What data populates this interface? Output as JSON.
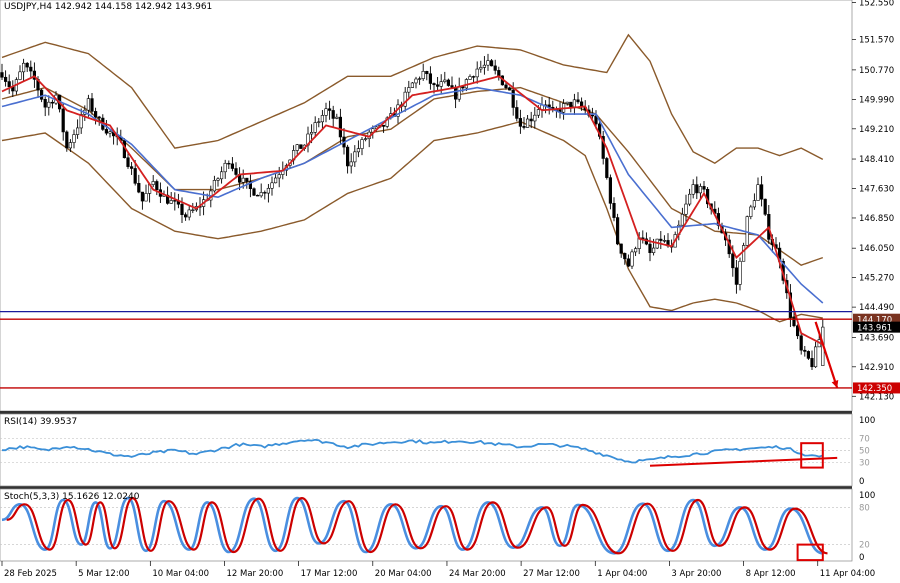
{
  "chart_data": {
    "type": "candlestick",
    "title": "USDJPY,H4  142.942 144.158 142.942 143.961",
    "symbol": "USDJPY",
    "timeframe": "H4",
    "last_bar": {
      "open": 142.942,
      "high": 144.158,
      "low": 142.942,
      "close": 143.961
    },
    "price_axis": {
      "ylim": [
        141.74,
        152.62
      ],
      "ticks": [
        "152.550",
        "151.570",
        "150.770",
        "149.990",
        "149.210",
        "148.410",
        "147.630",
        "146.850",
        "146.050",
        "145.270",
        "144.490",
        "143.690",
        "142.910",
        "142.130"
      ]
    },
    "time_axis": {
      "labels": [
        "28 Feb 2025",
        "5 Mar 12:00",
        "10 Mar 04:00",
        "12 Mar 20:00",
        "17 Mar 12:00",
        "20 Mar 04:00",
        "24 Mar 20:00",
        "27 Mar 12:00",
        "1 Apr 04:00",
        "3 Apr 20:00",
        "8 Apr 12:00",
        "11 Apr 04:00"
      ]
    },
    "horizontal_lines": [
      {
        "name": "resistance-blue",
        "price": 144.37,
        "color": "#1a1a9a"
      },
      {
        "name": "resistance-red",
        "price": 144.17,
        "label": "144.170",
        "color": "#c00000"
      },
      {
        "name": "support-red",
        "price": 142.35,
        "label": "142.350",
        "color": "#c00000"
      }
    ],
    "price_labels": [
      {
        "text": "144.170",
        "price": 144.17,
        "bg": "#7a3320",
        "fg": "#ffffff"
      },
      {
        "text": "143.961",
        "price": 143.96,
        "bg": "#000000",
        "fg": "#ffffff"
      },
      {
        "text": "142.350",
        "price": 142.35,
        "bg": "#cc0000",
        "fg": "#ffffff"
      }
    ],
    "price_path": [
      [
        0,
        150.7
      ],
      [
        3,
        150.2
      ],
      [
        6,
        150.9
      ],
      [
        9,
        150.5
      ],
      [
        12,
        149.8
      ],
      [
        15,
        150.1
      ],
      [
        18,
        148.7
      ],
      [
        21,
        149.3
      ],
      [
        24,
        149.9
      ],
      [
        27,
        149.4
      ],
      [
        30,
        149.1
      ],
      [
        33,
        148.8
      ],
      [
        36,
        148.1
      ],
      [
        39,
        147.3
      ],
      [
        42,
        147.8
      ],
      [
        45,
        147.4
      ],
      [
        48,
        147.2
      ],
      [
        51,
        146.9
      ],
      [
        54,
        147.1
      ],
      [
        57,
        147.4
      ],
      [
        60,
        147.9
      ],
      [
        63,
        148.4
      ],
      [
        66,
        147.9
      ],
      [
        69,
        147.6
      ],
      [
        72,
        147.5
      ],
      [
        75,
        147.8
      ],
      [
        78,
        148.2
      ],
      [
        81,
        148.6
      ],
      [
        84,
        148.8
      ],
      [
        87,
        149.3
      ],
      [
        90,
        149.7
      ],
      [
        93,
        149.4
      ],
      [
        96,
        148.3
      ],
      [
        99,
        148.7
      ],
      [
        102,
        149.1
      ],
      [
        105,
        149.2
      ],
      [
        108,
        149.5
      ],
      [
        111,
        149.9
      ],
      [
        114,
        150.4
      ],
      [
        117,
        150.7
      ],
      [
        120,
        150.3
      ],
      [
        123,
        150.4
      ],
      [
        126,
        150.1
      ],
      [
        129,
        150.5
      ],
      [
        132,
        150.8
      ],
      [
        135,
        150.9
      ],
      [
        138,
        150.6
      ],
      [
        141,
        150.2
      ],
      [
        144,
        149.3
      ],
      [
        147,
        149.5
      ],
      [
        150,
        149.9
      ],
      [
        153,
        149.6
      ],
      [
        156,
        149.8
      ],
      [
        159,
        149.9
      ],
      [
        162,
        149.7
      ],
      [
        165,
        149.4
      ],
      [
        168,
        147.9
      ],
      [
        171,
        146.2
      ],
      [
        174,
        145.6
      ],
      [
        177,
        146.4
      ],
      [
        180,
        145.9
      ],
      [
        183,
        146.3
      ],
      [
        186,
        146.0
      ],
      [
        189,
        146.9
      ],
      [
        192,
        147.7
      ],
      [
        195,
        147.5
      ],
      [
        198,
        146.9
      ],
      [
        201,
        146.3
      ],
      [
        204,
        145.1
      ],
      [
        207,
        146.8
      ],
      [
        210,
        147.7
      ],
      [
        213,
        146.4
      ],
      [
        216,
        145.8
      ],
      [
        219,
        144.3
      ],
      [
        222,
        143.3
      ],
      [
        225,
        142.99
      ],
      [
        228,
        143.96
      ]
    ],
    "ma_fast": [
      [
        0,
        150.2
      ],
      [
        9,
        150.6
      ],
      [
        18,
        149.7
      ],
      [
        30,
        149.3
      ],
      [
        42,
        147.6
      ],
      [
        54,
        147.1
      ],
      [
        66,
        148.0
      ],
      [
        78,
        148.1
      ],
      [
        90,
        149.3
      ],
      [
        102,
        149.0
      ],
      [
        114,
        150.1
      ],
      [
        126,
        150.3
      ],
      [
        138,
        150.6
      ],
      [
        150,
        149.7
      ],
      [
        162,
        149.8
      ],
      [
        168,
        148.7
      ],
      [
        177,
        146.3
      ],
      [
        186,
        146.1
      ],
      [
        195,
        147.5
      ],
      [
        204,
        145.8
      ],
      [
        213,
        146.6
      ],
      [
        222,
        143.8
      ],
      [
        228,
        143.5
      ]
    ],
    "ma_slow": [
      [
        0,
        149.8
      ],
      [
        12,
        150.1
      ],
      [
        24,
        149.6
      ],
      [
        36,
        148.8
      ],
      [
        48,
        147.6
      ],
      [
        60,
        147.4
      ],
      [
        72,
        147.9
      ],
      [
        84,
        148.3
      ],
      [
        96,
        148.9
      ],
      [
        108,
        149.5
      ],
      [
        120,
        150.1
      ],
      [
        132,
        150.3
      ],
      [
        144,
        150.1
      ],
      [
        156,
        149.6
      ],
      [
        165,
        149.6
      ],
      [
        174,
        148.0
      ],
      [
        186,
        146.6
      ],
      [
        198,
        146.7
      ],
      [
        210,
        146.4
      ],
      [
        222,
        145.1
      ],
      [
        228,
        144.6
      ]
    ],
    "bb_upper": [
      [
        0,
        151.1
      ],
      [
        12,
        151.5
      ],
      [
        24,
        151.2
      ],
      [
        36,
        150.3
      ],
      [
        48,
        148.7
      ],
      [
        60,
        148.9
      ],
      [
        72,
        149.4
      ],
      [
        84,
        149.9
      ],
      [
        96,
        150.6
      ],
      [
        108,
        150.6
      ],
      [
        120,
        151.1
      ],
      [
        132,
        151.4
      ],
      [
        144,
        151.3
      ],
      [
        156,
        150.9
      ],
      [
        162,
        150.8
      ],
      [
        168,
        150.7
      ],
      [
        174,
        151.7
      ],
      [
        180,
        151.0
      ],
      [
        186,
        149.6
      ],
      [
        192,
        148.6
      ],
      [
        198,
        148.3
      ],
      [
        204,
        148.7
      ],
      [
        210,
        148.7
      ],
      [
        216,
        148.5
      ],
      [
        222,
        148.7
      ],
      [
        228,
        148.4
      ]
    ],
    "bb_lower": [
      [
        0,
        148.9
      ],
      [
        12,
        149.1
      ],
      [
        24,
        148.3
      ],
      [
        36,
        147.1
      ],
      [
        48,
        146.5
      ],
      [
        60,
        146.3
      ],
      [
        72,
        146.5
      ],
      [
        84,
        146.8
      ],
      [
        96,
        147.5
      ],
      [
        108,
        147.9
      ],
      [
        120,
        148.9
      ],
      [
        132,
        149.1
      ],
      [
        144,
        149.4
      ],
      [
        156,
        148.9
      ],
      [
        162,
        148.5
      ],
      [
        168,
        147.1
      ],
      [
        174,
        145.5
      ],
      [
        180,
        144.5
      ],
      [
        186,
        144.4
      ],
      [
        192,
        144.6
      ],
      [
        198,
        144.7
      ],
      [
        204,
        144.6
      ],
      [
        210,
        144.4
      ],
      [
        216,
        144.1
      ],
      [
        222,
        144.3
      ],
      [
        228,
        144.2
      ]
    ],
    "bb_middle": [
      [
        0,
        150.0
      ],
      [
        12,
        150.3
      ],
      [
        24,
        149.7
      ],
      [
        36,
        148.7
      ],
      [
        48,
        147.6
      ],
      [
        60,
        147.6
      ],
      [
        72,
        147.9
      ],
      [
        84,
        148.3
      ],
      [
        96,
        149.0
      ],
      [
        108,
        149.2
      ],
      [
        120,
        150.0
      ],
      [
        132,
        150.2
      ],
      [
        144,
        150.3
      ],
      [
        156,
        149.9
      ],
      [
        165,
        149.6
      ],
      [
        174,
        148.6
      ],
      [
        186,
        147.1
      ],
      [
        198,
        146.5
      ],
      [
        210,
        146.4
      ],
      [
        222,
        145.6
      ],
      [
        228,
        145.8
      ]
    ],
    "forecast_arrow": {
      "from": [
        226,
        144.1
      ],
      "to": [
        232,
        142.35
      ],
      "color": "#dd0000"
    },
    "rsi": {
      "label": "RSI(14) 39.9537",
      "period": 14,
      "value": 39.9537,
      "ylim": [
        0,
        100
      ],
      "ticks": [
        "100",
        "70",
        "50",
        "30",
        "0"
      ],
      "values": [
        [
          0,
          52
        ],
        [
          6,
          56
        ],
        [
          12,
          50
        ],
        [
          18,
          58
        ],
        [
          24,
          52
        ],
        [
          30,
          44
        ],
        [
          36,
          40
        ],
        [
          42,
          46
        ],
        [
          48,
          50
        ],
        [
          54,
          44
        ],
        [
          60,
          52
        ],
        [
          66,
          60
        ],
        [
          72,
          56
        ],
        [
          78,
          62
        ],
        [
          84,
          68
        ],
        [
          90,
          64
        ],
        [
          96,
          56
        ],
        [
          102,
          60
        ],
        [
          108,
          64
        ],
        [
          114,
          66
        ],
        [
          120,
          62
        ],
        [
          126,
          66
        ],
        [
          132,
          64
        ],
        [
          138,
          60
        ],
        [
          144,
          56
        ],
        [
          150,
          60
        ],
        [
          156,
          58
        ],
        [
          162,
          52
        ],
        [
          168,
          42
        ],
        [
          174,
          32
        ],
        [
          180,
          34
        ],
        [
          186,
          40
        ],
        [
          192,
          44
        ],
        [
          198,
          48
        ],
        [
          204,
          52
        ],
        [
          210,
          54
        ],
        [
          216,
          56
        ],
        [
          220,
          50
        ],
        [
          224,
          42
        ],
        [
          228,
          40
        ]
      ],
      "trendline": {
        "from": [
          180,
          25
        ],
        "to": [
          232,
          38
        ],
        "color": "#dd0000"
      },
      "highlight": {
        "x": [
          222,
          228
        ],
        "y": [
          22,
          62
        ],
        "color": "#dd0000"
      }
    },
    "stochastic": {
      "label": "Stoch(5,3,3) 15.1626 12.0240",
      "params": "5,3,3",
      "k": 15.1626,
      "d": 12.024,
      "ylim": [
        0,
        100
      ],
      "ticks": [
        "100",
        "80",
        "20",
        "0"
      ],
      "cycle_peaks": [
        [
          5,
          85
        ],
        [
          17,
          92
        ],
        [
          26,
          88
        ],
        [
          35,
          95
        ],
        [
          45,
          90
        ],
        [
          57,
          88
        ],
        [
          70,
          94
        ],
        [
          82,
          95
        ],
        [
          95,
          90
        ],
        [
          108,
          85
        ],
        [
          122,
          82
        ],
        [
          135,
          88
        ],
        [
          150,
          80
        ],
        [
          160,
          84
        ],
        [
          178,
          86
        ],
        [
          192,
          92
        ],
        [
          205,
          80
        ],
        [
          219,
          78
        ]
      ],
      "cycle_troughs": [
        [
          0,
          60
        ],
        [
          12,
          12
        ],
        [
          22,
          20
        ],
        [
          30,
          14
        ],
        [
          40,
          10
        ],
        [
          52,
          12
        ],
        [
          63,
          8
        ],
        [
          76,
          10
        ],
        [
          88,
          22
        ],
        [
          101,
          8
        ],
        [
          115,
          14
        ],
        [
          128,
          12
        ],
        [
          142,
          15
        ],
        [
          155,
          18
        ],
        [
          170,
          6
        ],
        [
          185,
          10
        ],
        [
          198,
          18
        ],
        [
          212,
          12
        ],
        [
          228,
          6
        ]
      ],
      "highlight": {
        "x": [
          221,
          228
        ],
        "y": [
          -5,
          20
        ],
        "color": "#dd0000"
      }
    }
  }
}
